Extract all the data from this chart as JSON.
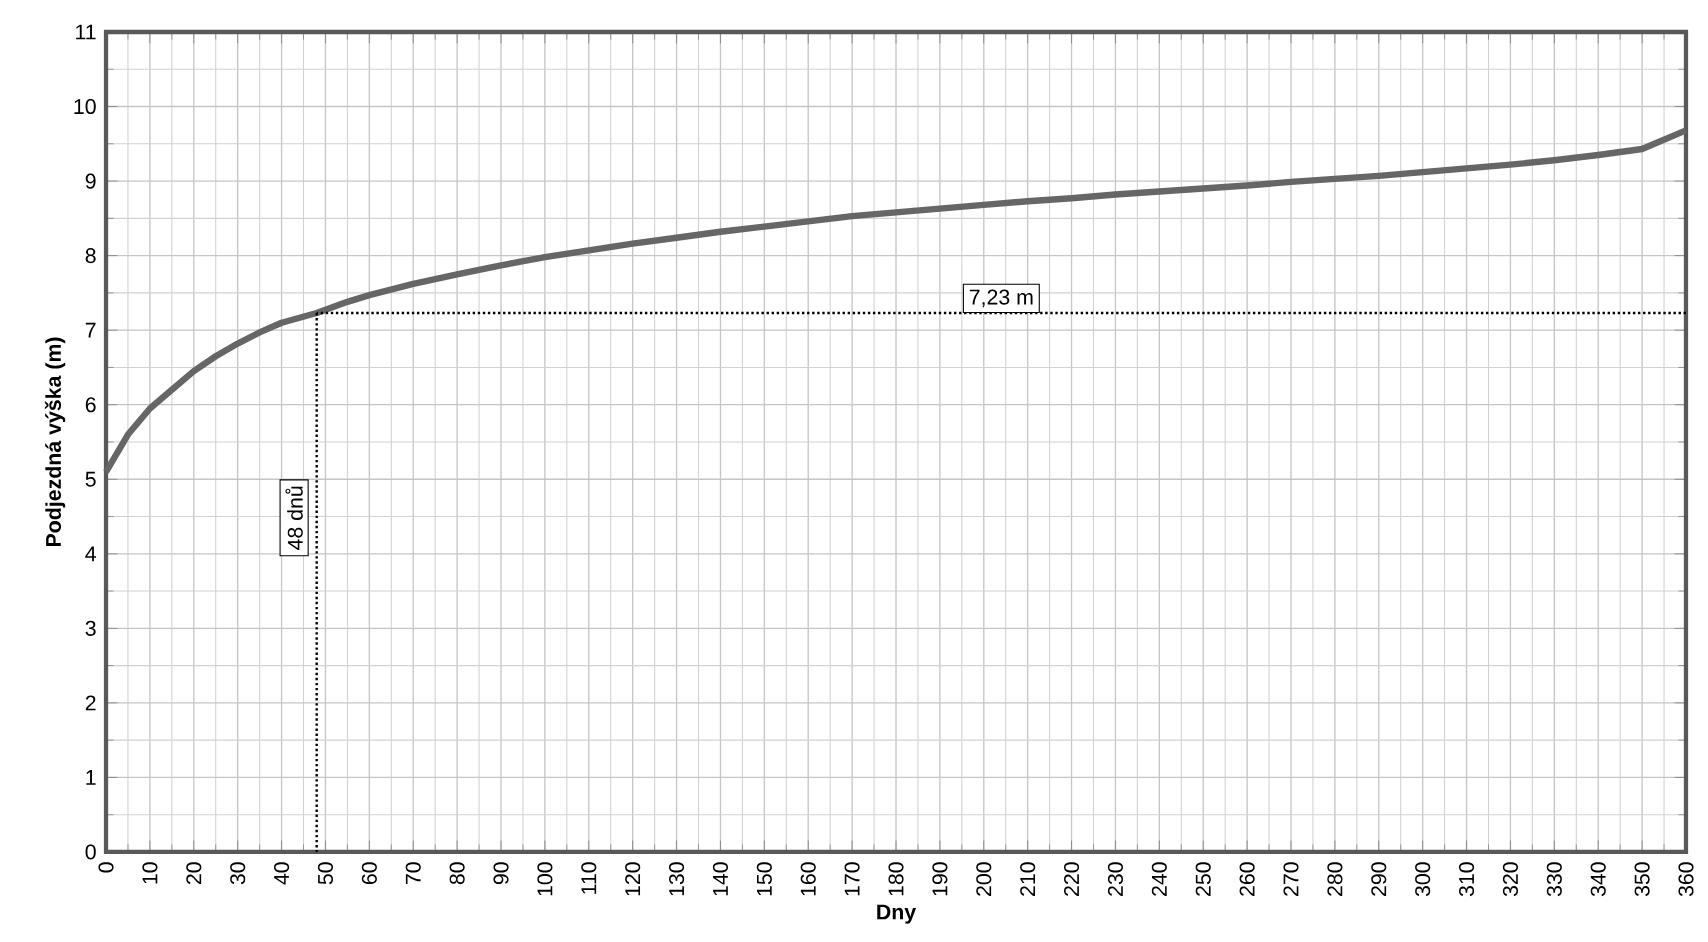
{
  "chart_data": {
    "type": "line",
    "xlabel": "Dny",
    "ylabel": "Podjezdná výška (m)",
    "xlim": [
      0,
      360
    ],
    "ylim": [
      0,
      11
    ],
    "xticks": [
      0,
      10,
      20,
      30,
      40,
      50,
      60,
      70,
      80,
      90,
      100,
      110,
      120,
      130,
      140,
      150,
      160,
      170,
      180,
      190,
      200,
      210,
      220,
      230,
      240,
      250,
      260,
      270,
      280,
      290,
      300,
      310,
      320,
      330,
      340,
      350,
      360
    ],
    "yticks": [
      0,
      1,
      2,
      3,
      4,
      5,
      6,
      7,
      8,
      9,
      10,
      11
    ],
    "grid": true,
    "marker": "none",
    "series": [
      {
        "color": "#666666",
        "x": [
          0,
          5,
          10,
          15,
          20,
          25,
          30,
          35,
          40,
          48,
          55,
          60,
          70,
          80,
          90,
          100,
          110,
          120,
          130,
          140,
          150,
          160,
          170,
          180,
          190,
          200,
          210,
          220,
          230,
          240,
          250,
          260,
          270,
          280,
          290,
          300,
          310,
          320,
          330,
          340,
          350,
          360
        ],
        "values": [
          5.1,
          5.6,
          5.95,
          6.2,
          6.45,
          6.65,
          6.82,
          6.97,
          7.1,
          7.23,
          7.38,
          7.47,
          7.62,
          7.75,
          7.87,
          7.98,
          8.07,
          8.16,
          8.24,
          8.32,
          8.39,
          8.46,
          8.53,
          8.58,
          8.63,
          8.68,
          8.73,
          8.77,
          8.82,
          8.86,
          8.9,
          8.94,
          8.99,
          9.03,
          9.07,
          9.12,
          9.17,
          9.22,
          9.28,
          9.35,
          9.43,
          9.68
        ]
      }
    ],
    "ref_lines": [
      {
        "axis": "y",
        "value": 7.23,
        "label": "7,23 m",
        "color": "#000000",
        "line_style": "dotted"
      },
      {
        "axis": "x",
        "value": 48,
        "label": "48 dnů",
        "color": "#000000",
        "line_style": "dotted"
      }
    ]
  }
}
